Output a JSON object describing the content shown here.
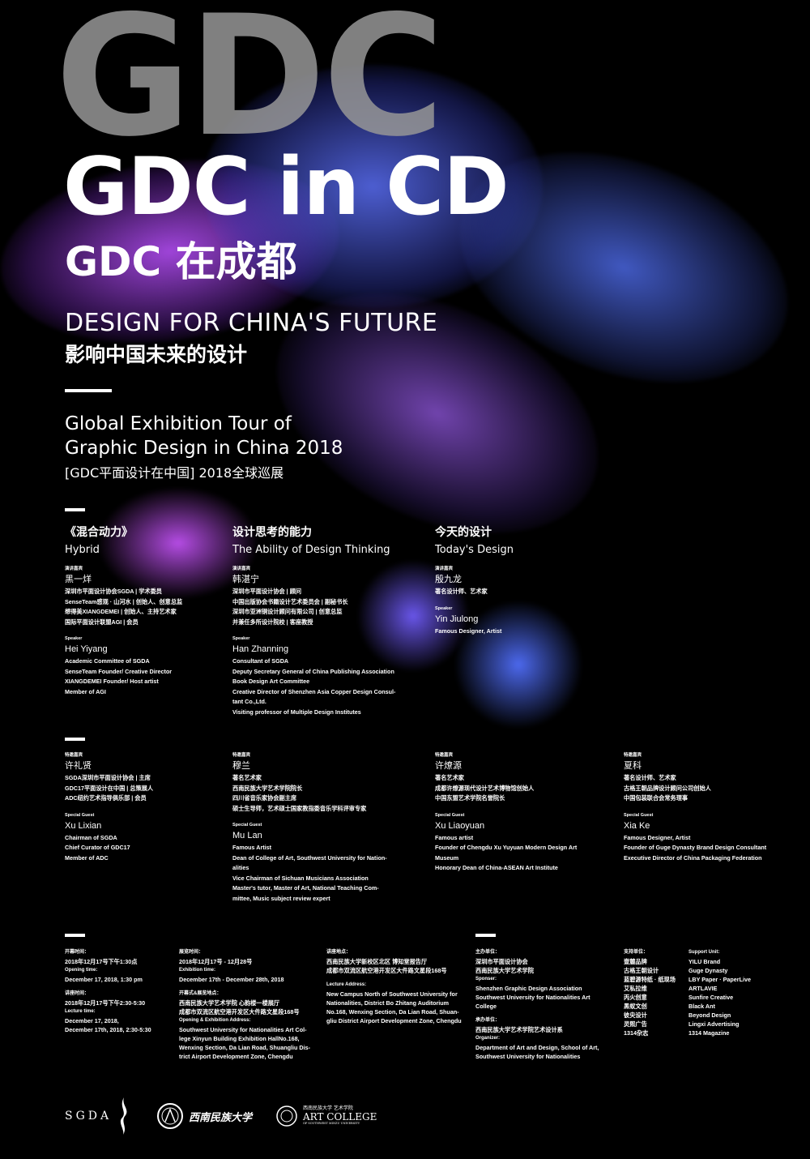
{
  "colors": {
    "background": "#000000",
    "purple": "#b04cf0",
    "blue": "#4a63f5",
    "gray": "#969696"
  },
  "header": {
    "big_gdc": "GDC",
    "title": "GDC in CD",
    "title_cn": "GDC 在成都",
    "slogan_en": "DESIGN FOR CHINA'S FUTURE",
    "slogan_cn": "影响中国未来的设计",
    "tour_en_1": "Global Exhibition Tour of",
    "tour_en_2": "Graphic Design in China 2018",
    "tour_cn": "[GDC平面设计在中国] 2018全球巡展"
  },
  "sessions": [
    {
      "cn": "《混合动力》",
      "en": "Hybrid"
    },
    {
      "cn": "设计思考的能力",
      "en": "The Ability of Design Thinking"
    },
    {
      "cn": "今天的设计",
      "en": "Today's Design"
    }
  ],
  "speakers": [
    {
      "role_cn": "演讲嘉宾",
      "name_cn": "黑一烊",
      "lines_cn": [
        "深圳市平面设计协会SGDA | 学术委员",
        "SenseTeam感观 · 山河水 | 创始人、创意总监",
        "想得美XIANGDEMEI | 创始人、主持艺术家",
        "国际平面设计联盟AGI | 会员"
      ],
      "role_en": "Speaker",
      "name_en": "Hei Yiyang",
      "lines_en": [
        "Academic Committee of SGDA",
        "SenseTeam Founder/ Creative Director",
        "XIANGDEMEI Founder/ Host artist",
        "Member of AGI"
      ]
    },
    {
      "role_cn": "演讲嘉宾",
      "name_cn": "韩湛宁",
      "lines_cn": [
        "深圳市平面设计协会 | 顾问",
        "中国出版协会书籍设计艺术委员会 | 副秘书长",
        "深圳市亚洲铜设计顾问有限公司 | 创意总监",
        "并兼任多所设计院校 | 客座教授"
      ],
      "role_en": "Speaker",
      "name_en": "Han Zhanning",
      "lines_en": [
        "Consultant of SGDA",
        "Deputy Secretary General of China Publishing Association",
        "Book Design Art Committee",
        "Creative Director of Shenzhen Asia Copper Design Consul-",
        "tant Co.,Ltd.",
        "Visiting professor of Multiple Design Institutes"
      ]
    },
    {
      "role_cn": "演讲嘉宾",
      "name_cn": "殷九龙",
      "lines_cn": [
        "著名设计师、艺术家"
      ],
      "role_en": "Speaker",
      "name_en": "Yin Jiulong",
      "lines_en": [
        "Famous Designer, Artist"
      ]
    }
  ],
  "guests": [
    {
      "role_cn": "特邀嘉宾",
      "name_cn": "许礼贤",
      "lines_cn": [
        "SGDA深圳市平面设计协会 | 主席",
        "GDC17平面设计在中国 | 总策展人",
        "ADC纽约艺术指导俱乐部 | 会员"
      ],
      "role_en": "Special Guest",
      "name_en": "Xu Lixian",
      "lines_en": [
        "Chairman of SGDA",
        "Chief Curator of GDC17",
        "Member of ADC"
      ]
    },
    {
      "role_cn": "特邀嘉宾",
      "name_cn": "穆兰",
      "lines_cn": [
        "著名艺术家",
        "西南民族大学艺术学院院长",
        "四川省音乐家协会副主席",
        "硕士生导师，艺术硕士国家教指委音乐学科评审专家"
      ],
      "role_en": "Special Guest",
      "name_en": "Mu Lan",
      "lines_en": [
        "Famous Artist",
        "Dean of College of Art, Southwest University for Nation-",
        "alities",
        "Vice Chairman of Sichuan Musicians Association",
        "Master's tutor, Master of Art, National Teaching Com-",
        "mittee, Music subject review expert"
      ]
    },
    {
      "role_cn": "特邀嘉宾",
      "name_cn": "许燎源",
      "lines_cn": [
        "著名艺术家",
        "成都许燎源现代设计艺术博物馆创始人",
        "中国东盟艺术学院名誉院长"
      ],
      "role_en": "Special Guest",
      "name_en": "Xu Liaoyuan",
      "lines_en": [
        "Famous artist",
        "Founder of Chengdu Xu Yuyuan Modern Design Art",
        "Museum",
        "Honorary Dean of China-ASEAN Art Institute"
      ]
    },
    {
      "role_cn": "特邀嘉宾",
      "name_cn": "夏科",
      "lines_cn": [
        "著名设计师、艺术家",
        "古格王朝品牌设计顾问公司创始人",
        "中国包装联合会常务理事"
      ],
      "role_en": "Special Guest",
      "name_en": "Xia Ke",
      "lines_en": [
        "Famous Designer, Artist",
        "Founder of Guge Dynasty Brand Design Consultant",
        "Executive Director of China Packaging Federation"
      ]
    }
  ],
  "info": [
    {
      "blocks": [
        {
          "label": "开幕时间：",
          "lines": [
            "2018年12月17号下午1:30点"
          ]
        },
        {
          "label": "Opening time:",
          "lines": [
            "December 17, 2018, 1:30 pm"
          ]
        },
        {
          "gap": true
        },
        {
          "label": "讲座时间：",
          "lines": [
            "2018年12月17号下午2:30-5:30"
          ]
        },
        {
          "label": "Lecture time:",
          "lines": [
            "December 17, 2018,",
            "December 17th, 2018, 2:30-5:30"
          ]
        }
      ]
    },
    {
      "blocks": [
        {
          "label": "展览时间：",
          "lines": [
            "2018年12月17号 - 12月28号"
          ]
        },
        {
          "label": "Exhibition time:",
          "lines": [
            "December 17th - December 28th, 2018"
          ]
        },
        {
          "gap": true
        },
        {
          "label": "开幕式&展览地点：",
          "lines": [
            "西南民族大学艺术学院 心韵楼一楼展厅",
            "成都市双流区航空港开发区大件路文星段168号"
          ]
        },
        {
          "label": "Opening & Exhibition Address:",
          "lines": [
            "Southwest University for Nationalities Art Col-",
            "lege Xinyun Building Exhibition HallNo.168,",
            "Wenxing Section, Da Lian Road, Shuangliu Dis-",
            "trict Airport Development Zone, Chengdu"
          ]
        }
      ]
    },
    {
      "blocks": [
        {
          "label": "讲座地点：",
          "lines": [
            "西南民族大学新校区北区 博知堂报告厅",
            "成都市双流区航空港开发区大件路文星段168号"
          ]
        },
        {
          "gap": true
        },
        {
          "label": "Lecture Address:",
          "lines": [
            "New Campus North of Southwest University for",
            "Nationalities, District Bo Zhitang Auditorium",
            "No.168, Wenxing Section, Da Lian Road, Shuan-",
            "gliu District Airport Development Zone, Chengdu"
          ]
        }
      ]
    },
    {
      "blocks": [
        {
          "label": "主办单位：",
          "lines": [
            "深圳市平面设计协会",
            "西南民族大学艺术学院"
          ]
        },
        {
          "label": "Sponser:",
          "lines": [
            "Shenzhen Graphic Design Association",
            "Southwest University for Nationalities Art",
            "College"
          ]
        },
        {
          "gap": true
        },
        {
          "label": "承办单位：",
          "lines": [
            "西南民族大学艺术学院艺术设计系"
          ]
        },
        {
          "label": "Organizer:",
          "lines": [
            "Department of Art and Design, School of Art,",
            "Southwest University for Nationalities"
          ]
        }
      ]
    },
    {
      "blocks": [
        {
          "label": "支持单位：",
          "lines": [
            "壹麓品牌",
            "古格王朝设计",
            "蓝碧源特纸 · 纸现场",
            "艾私拉维",
            "丙火创意",
            "黑蚁文创",
            "彼央设计",
            "灵熙广告",
            "1314杂志"
          ]
        }
      ]
    },
    {
      "blocks": [
        {
          "label": "Support Unit:",
          "lines": [
            "YILU Brand",
            "Guge Dynasty",
            "LBY Paper · PaperLive",
            "ARTLAVIE",
            "Sunfire Creative",
            "Black Ant",
            "Beyond Design",
            "Lingxi Advertising",
            "1314 Magazine"
          ]
        }
      ]
    }
  ],
  "logos": {
    "sgda": "SGDA",
    "university_cn": "西南民族大学",
    "college_cn": "西南民族大学 艺术学院",
    "college_en": "ART COLLEGE",
    "college_sub": "OF SOUTHWEST MINZU UNIVERSITY"
  }
}
